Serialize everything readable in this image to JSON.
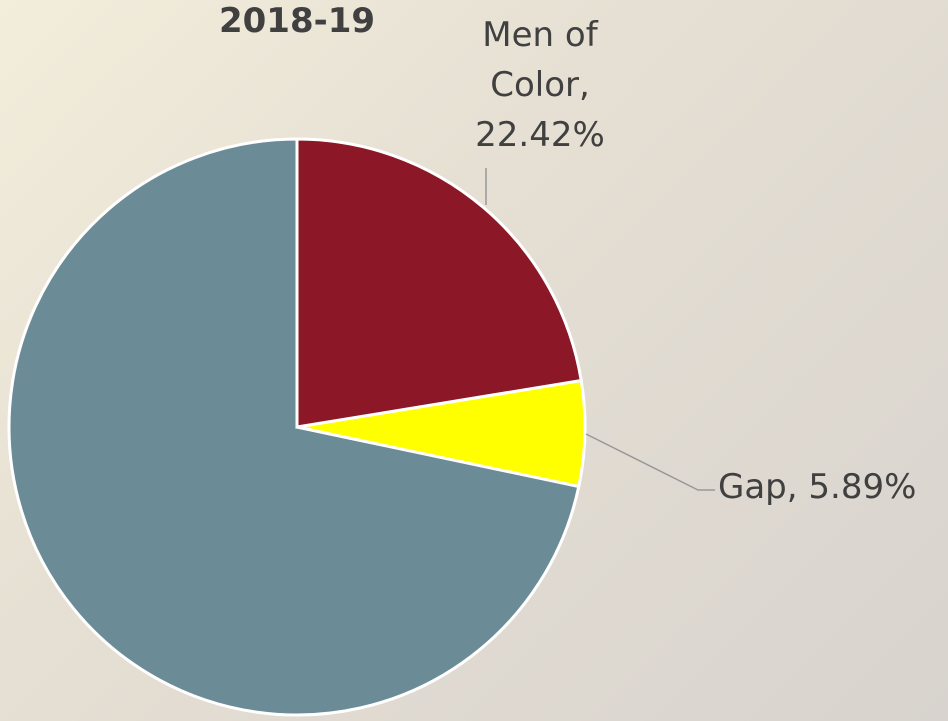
{
  "chart_data": {
    "type": "pie",
    "title": "2018-19",
    "categories": [
      "Men of Color",
      "Gap",
      null
    ],
    "values": [
      22.42,
      5.89,
      71.69
    ],
    "value_labels": [
      "Men of Color, 22.42%",
      "Gap, 5.89%",
      null
    ],
    "colors": [
      "#8b1727",
      "#ffff00",
      "#6b8c97"
    ]
  }
}
